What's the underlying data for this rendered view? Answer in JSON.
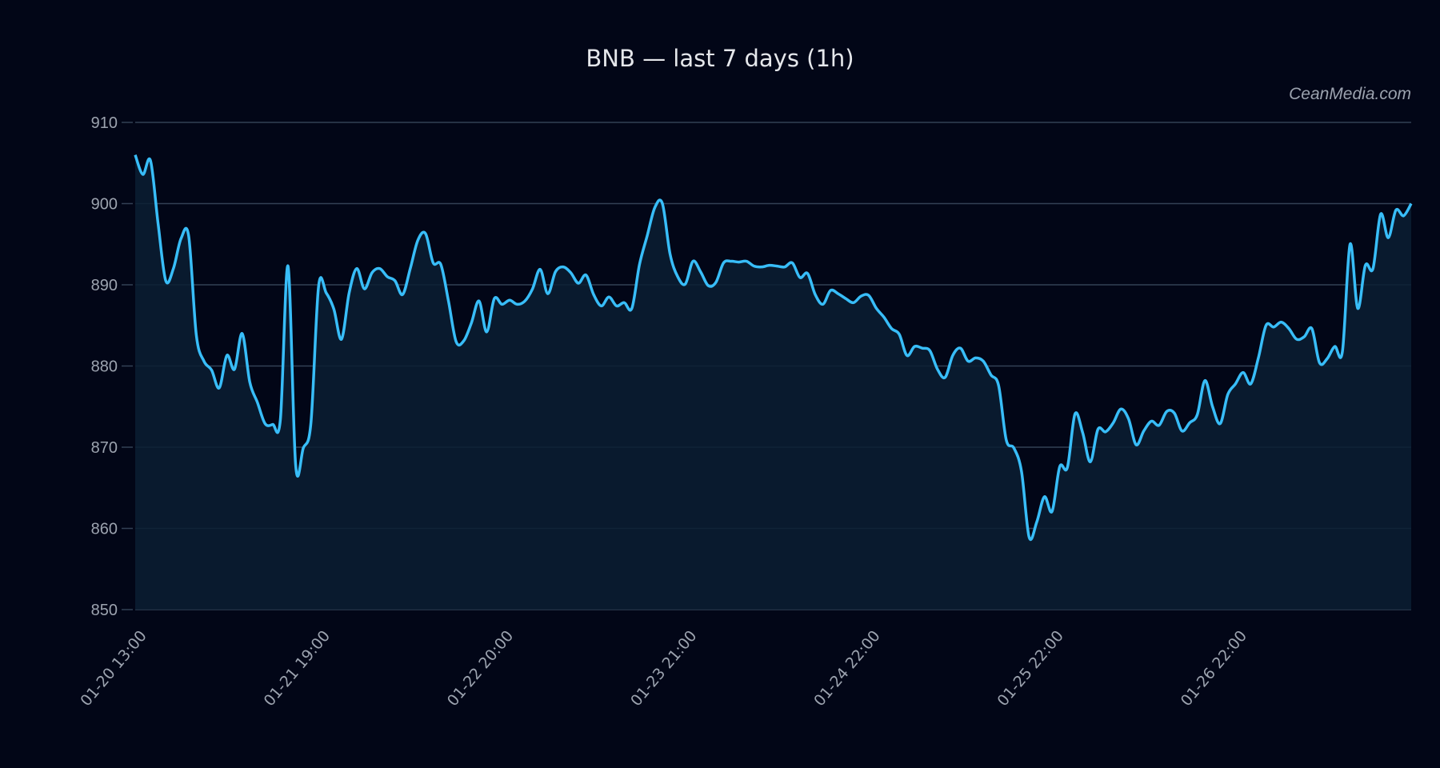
{
  "title": "BNB — last 7 days (1h)",
  "watermark": "CeanMedia.com",
  "colors": {
    "background": "#020617",
    "line": "#38bdf8",
    "area_fill": "#0b1e33",
    "grid": "#334155",
    "tick_text": "#9ca3af",
    "title_text": "#e5e7eb"
  },
  "chart_data": {
    "type": "area",
    "title": "BNB — last 7 days (1h)",
    "xlabel": "",
    "ylabel": "",
    "ylim": [
      850,
      910
    ],
    "yticks": [
      850,
      860,
      870,
      880,
      890,
      900,
      910
    ],
    "xtick_labels": [
      "01-20 13:00",
      "01-21 19:00",
      "01-22 20:00",
      "01-23 21:00",
      "01-24 22:00",
      "01-25 22:00",
      "01-26 22:00"
    ],
    "xtick_index": [
      0,
      24,
      48,
      72,
      96,
      120,
      144
    ],
    "grid": true,
    "legend": null,
    "series": [
      {
        "name": "BNB",
        "values": [
          906.0,
          903.6,
          905.3,
          897.5,
          890.5,
          892.0,
          895.7,
          896.0,
          883.8,
          880.6,
          879.5,
          877.3,
          881.3,
          879.6,
          884.0,
          878.0,
          875.5,
          872.9,
          872.8,
          873.4,
          892.3,
          867.8,
          869.9,
          873.0,
          889.8,
          889.0,
          887.0,
          883.3,
          889.0,
          892.0,
          889.5,
          891.5,
          892.0,
          891.0,
          890.5,
          888.8,
          892.0,
          895.5,
          896.3,
          892.7,
          892.5,
          888.0,
          883.0,
          883.1,
          885.3,
          888.0,
          884.2,
          888.3,
          887.6,
          888.1,
          887.6,
          888.0,
          889.5,
          891.9,
          888.9,
          891.6,
          892.2,
          891.5,
          890.2,
          891.2,
          888.8,
          887.4,
          888.5,
          887.4,
          887.8,
          887.1,
          892.5,
          896.0,
          899.5,
          900.0,
          893.8,
          891.0,
          890.1,
          892.9,
          891.6,
          889.9,
          890.3,
          892.7,
          892.9,
          892.8,
          892.9,
          892.3,
          892.2,
          892.4,
          892.3,
          892.2,
          892.7,
          890.9,
          891.4,
          888.8,
          887.6,
          889.3,
          888.9,
          888.3,
          887.8,
          888.6,
          888.7,
          887.1,
          886.0,
          884.6,
          883.9,
          881.3,
          882.4,
          882.2,
          881.9,
          879.6,
          878.6,
          881.3,
          882.2,
          880.6,
          881.0,
          880.6,
          878.9,
          877.6,
          870.9,
          869.9,
          867.0,
          858.9,
          860.8,
          863.9,
          862.1,
          867.6,
          867.5,
          874.1,
          871.8,
          868.2,
          872.2,
          871.9,
          873.0,
          874.7,
          873.5,
          870.3,
          872.0,
          873.2,
          872.7,
          874.4,
          874.2,
          872.0,
          873.0,
          874.0,
          878.2,
          875.0,
          872.9,
          876.5,
          877.8,
          879.2,
          877.8,
          881.0,
          885.0,
          884.8,
          885.4,
          884.6,
          883.3,
          883.6,
          884.6,
          880.4,
          880.9,
          882.4,
          881.8,
          895.0,
          887.1,
          892.4,
          892.0,
          898.7,
          895.8,
          899.2,
          898.5,
          900.0
        ]
      }
    ]
  }
}
